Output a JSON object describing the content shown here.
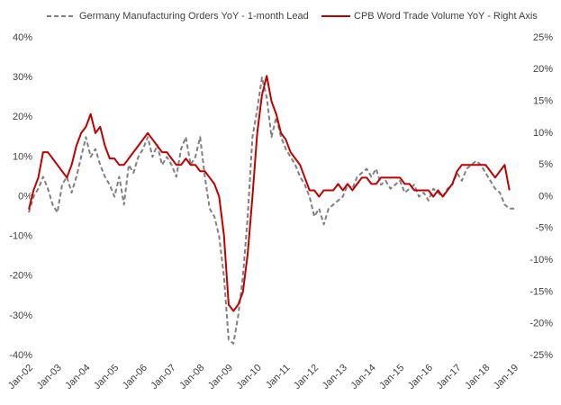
{
  "chart_data": {
    "type": "line",
    "categories": [
      "Jan-02",
      null,
      null,
      null,
      null,
      null,
      "Jan-03",
      null,
      null,
      null,
      null,
      null,
      "Jan-04",
      null,
      null,
      null,
      null,
      null,
      "Jan-05",
      null,
      null,
      null,
      null,
      null,
      "Jan-06",
      null,
      null,
      null,
      null,
      null,
      "Jan-07",
      null,
      null,
      null,
      null,
      null,
      "Jan-08",
      null,
      null,
      null,
      null,
      null,
      "Jan-09",
      null,
      null,
      null,
      null,
      null,
      "Jan-10",
      null,
      null,
      null,
      null,
      null,
      "Jan-11",
      null,
      null,
      null,
      null,
      null,
      "Jan-12",
      null,
      null,
      null,
      null,
      null,
      "Jan-13",
      null,
      null,
      null,
      null,
      null,
      "Jan-14",
      null,
      null,
      null,
      null,
      null,
      "Jan-15",
      null,
      null,
      null,
      null,
      null,
      "Jan-16",
      null,
      null,
      null,
      null,
      null,
      "Jan-17",
      null,
      null,
      null,
      null,
      null,
      "Jan-18",
      null,
      null,
      null,
      null,
      null,
      "Jan-19"
    ],
    "series": [
      {
        "name": "Germany Manufacturing Orders YoY - 1-month Lead",
        "color": "#808080",
        "dash": true,
        "axis": "y",
        "values": [
          -4,
          0,
          2,
          5,
          2,
          -2,
          -4,
          3,
          5,
          1,
          5,
          10,
          15,
          10,
          12,
          8,
          5,
          3,
          0,
          5,
          -2,
          8,
          6,
          10,
          12,
          15,
          10,
          13,
          8,
          10,
          8,
          5,
          12,
          15,
          8,
          10,
          15,
          5,
          -3,
          -5,
          -10,
          -20,
          -36,
          -37,
          -30,
          -20,
          -5,
          15,
          22,
          30,
          25,
          15,
          20,
          15,
          12,
          10,
          8,
          5,
          3,
          0,
          -5,
          -3,
          -7,
          -3,
          -2,
          -1,
          0,
          3,
          2,
          5,
          6,
          7,
          5,
          7,
          3,
          4,
          2,
          3,
          4,
          1,
          2,
          3,
          0,
          1,
          -1,
          2,
          1,
          0,
          2,
          3,
          6,
          4,
          7,
          8,
          9,
          8,
          6,
          4,
          2,
          1,
          -2,
          -3,
          -3
        ]
      },
      {
        "name": "CPB Word Trade Volume YoY - Right Axis",
        "color": "#c00000",
        "dash": false,
        "axis": "y2",
        "values": [
          -2,
          1,
          3,
          7,
          7,
          6,
          5,
          4,
          3,
          5,
          8,
          10,
          11,
          13,
          10,
          11,
          8,
          6,
          6,
          5,
          5,
          6,
          7,
          8,
          9,
          10,
          9,
          8,
          7,
          7,
          6,
          5,
          5,
          6,
          5,
          5,
          4,
          4,
          3,
          2,
          0,
          -6,
          -17,
          -18,
          -17,
          -15,
          -9,
          0,
          10,
          16,
          19,
          15,
          13,
          10,
          9,
          7,
          6,
          5,
          3,
          1,
          1,
          0,
          1,
          1,
          1,
          2,
          1,
          2,
          1,
          2,
          3,
          3,
          2,
          2,
          3,
          3,
          3,
          3,
          3,
          2,
          2,
          1,
          1,
          1,
          1,
          0,
          1,
          0,
          1,
          2,
          4,
          5,
          5,
          5,
          5,
          5,
          5,
          4,
          3,
          4,
          5,
          1,
          null
        ]
      }
    ],
    "ylim": [
      -40,
      40
    ],
    "yticks": [
      {
        "value": -40,
        "label": "-40%"
      },
      {
        "value": -30,
        "label": "-30%"
      },
      {
        "value": -20,
        "label": "-20%"
      },
      {
        "value": -10,
        "label": "-10%"
      },
      {
        "value": 0,
        "label": "0%"
      },
      {
        "value": 10,
        "label": "10%"
      },
      {
        "value": 20,
        "label": "20%"
      },
      {
        "value": 30,
        "label": "30%"
      },
      {
        "value": 40,
        "label": "40%"
      }
    ],
    "y2lim": [
      -25,
      25
    ],
    "y2ticks": [
      {
        "value": -25,
        "label": "-25%"
      },
      {
        "value": -20,
        "label": "-20%"
      },
      {
        "value": -15,
        "label": "-15%"
      },
      {
        "value": -10,
        "label": "-10%"
      },
      {
        "value": -5,
        "label": "-5%"
      },
      {
        "value": 0,
        "label": "0%"
      },
      {
        "value": 5,
        "label": "5%"
      },
      {
        "value": 10,
        "label": "10%"
      },
      {
        "value": 15,
        "label": "15%"
      },
      {
        "value": 20,
        "label": "20%"
      },
      {
        "value": 25,
        "label": "25%"
      }
    ],
    "grid": false
  }
}
